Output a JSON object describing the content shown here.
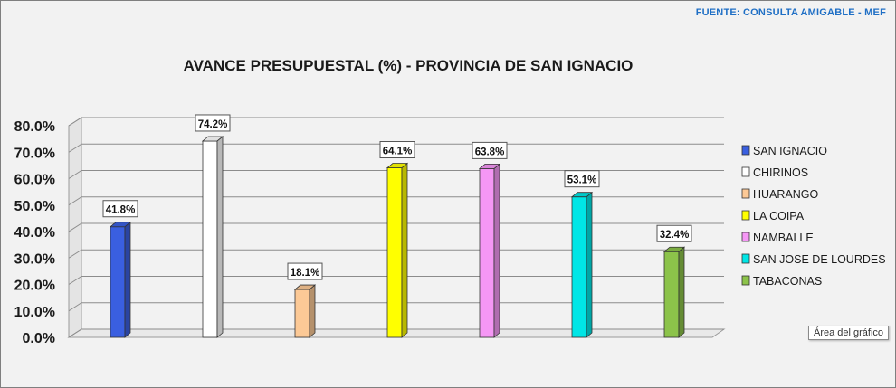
{
  "source_note": "FUENTE:  CONSULTA AMIGABLE  - MEF",
  "tooltip": "Área del gráfico",
  "chart_data": {
    "type": "bar",
    "title": "AVANCE PRESUPUESTAL (%) - PROVINCIA DE SAN IGNACIO",
    "categories": [
      "SAN IGNACIO",
      "CHIRINOS",
      "HUARANGO",
      "LA COIPA",
      "NAMBALLE",
      "SAN JOSE DE LOURDES",
      "TABACONAS"
    ],
    "values": [
      41.8,
      74.2,
      18.1,
      64.1,
      63.8,
      53.1,
      32.4
    ],
    "value_labels": [
      "41.8%",
      "74.2%",
      "18.1%",
      "64.1%",
      "63.8%",
      "53.1%",
      "32.4%"
    ],
    "colors": [
      "#3a5fe0",
      "#ffffff",
      "#fcc996",
      "#ffff00",
      "#f597f5",
      "#00e6e6",
      "#8cc34a"
    ],
    "ylim": [
      0,
      80
    ],
    "yticks": [
      "0.0%",
      "10.0%",
      "20.0%",
      "30.0%",
      "40.0%",
      "50.0%",
      "60.0%",
      "70.0%",
      "80.0%"
    ],
    "grid": true,
    "legend": "right"
  }
}
